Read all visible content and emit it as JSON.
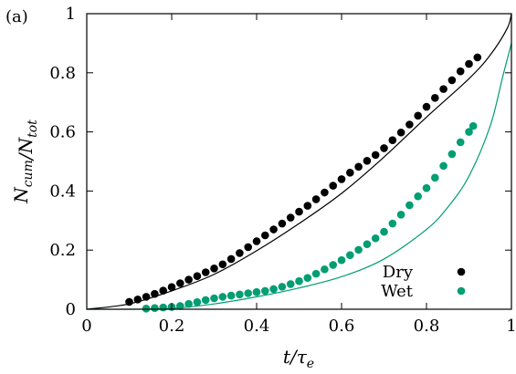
{
  "panel_label": "(a)",
  "colors": {
    "dry": "#000000",
    "wet": "#009e73",
    "frame": "#000000"
  },
  "chart_data": {
    "type": "scatter",
    "xlabel": "t/τ_e",
    "ylabel": "N_cum/N_tot",
    "xlim": [
      0,
      1
    ],
    "ylim": [
      0,
      1
    ],
    "x_ticks": [
      0,
      0.2,
      0.4,
      0.6,
      0.8,
      1
    ],
    "x_tick_labels": [
      "0",
      "0.2",
      "0.4",
      "0.6",
      "0.8",
      "1"
    ],
    "y_ticks": [
      0,
      0.2,
      0.4,
      0.6,
      0.8,
      1
    ],
    "y_tick_labels": [
      "0",
      "0.2",
      "0.4",
      "0.6",
      "0.8",
      "1"
    ],
    "legend_position": "bottom-right",
    "series": [
      {
        "name": "Dry",
        "color": "#000000",
        "x": [
          0.1,
          0.12,
          0.14,
          0.16,
          0.18,
          0.2,
          0.22,
          0.24,
          0.26,
          0.28,
          0.3,
          0.32,
          0.34,
          0.36,
          0.38,
          0.4,
          0.42,
          0.44,
          0.46,
          0.48,
          0.5,
          0.52,
          0.54,
          0.56,
          0.58,
          0.6,
          0.62,
          0.64,
          0.66,
          0.68,
          0.7,
          0.72,
          0.74,
          0.76,
          0.78,
          0.8,
          0.82,
          0.84,
          0.86,
          0.88,
          0.9,
          0.92
        ],
        "y": [
          0.025,
          0.033,
          0.042,
          0.052,
          0.063,
          0.075,
          0.088,
          0.1,
          0.112,
          0.125,
          0.138,
          0.152,
          0.17,
          0.19,
          0.21,
          0.23,
          0.25,
          0.27,
          0.29,
          0.31,
          0.33,
          0.35,
          0.372,
          0.395,
          0.418,
          0.44,
          0.462,
          0.482,
          0.502,
          0.522,
          0.545,
          0.572,
          0.598,
          0.625,
          0.655,
          0.685,
          0.715,
          0.745,
          0.775,
          0.805,
          0.83,
          0.852
        ]
      },
      {
        "name": "Wet",
        "color": "#009e73",
        "x": [
          0.14,
          0.16,
          0.18,
          0.2,
          0.22,
          0.24,
          0.26,
          0.28,
          0.3,
          0.32,
          0.34,
          0.36,
          0.38,
          0.4,
          0.42,
          0.44,
          0.46,
          0.48,
          0.5,
          0.52,
          0.54,
          0.56,
          0.58,
          0.6,
          0.62,
          0.64,
          0.66,
          0.68,
          0.7,
          0.72,
          0.74,
          0.76,
          0.78,
          0.8,
          0.82,
          0.84,
          0.86,
          0.88,
          0.9,
          0.91
        ],
        "y": [
          0.002,
          0.004,
          0.006,
          0.008,
          0.011,
          0.018,
          0.024,
          0.031,
          0.037,
          0.042,
          0.046,
          0.05,
          0.054,
          0.058,
          0.062,
          0.068,
          0.076,
          0.085,
          0.095,
          0.106,
          0.12,
          0.135,
          0.15,
          0.166,
          0.183,
          0.201,
          0.22,
          0.24,
          0.262,
          0.29,
          0.32,
          0.352,
          0.382,
          0.41,
          0.445,
          0.485,
          0.525,
          0.565,
          0.6,
          0.62
        ]
      }
    ],
    "fits": [
      {
        "series": "Dry",
        "color": "#000000",
        "x": [
          0,
          0.1,
          0.2,
          0.3,
          0.4,
          0.5,
          0.6,
          0.7,
          0.8,
          0.9,
          0.95,
          0.99,
          1.0
        ],
        "y": [
          0,
          0.018,
          0.062,
          0.118,
          0.198,
          0.29,
          0.392,
          0.515,
          0.65,
          0.78,
          0.86,
          0.95,
          1.0
        ]
      },
      {
        "series": "Wet",
        "color": "#009e73",
        "x": [
          0,
          0.1,
          0.2,
          0.3,
          0.4,
          0.5,
          0.6,
          0.7,
          0.8,
          0.85,
          0.9,
          0.95,
          0.98,
          1.0
        ],
        "y": [
          0,
          0.0,
          0.003,
          0.018,
          0.042,
          0.072,
          0.11,
          0.17,
          0.27,
          0.345,
          0.45,
          0.62,
          0.79,
          0.9
        ]
      }
    ]
  }
}
